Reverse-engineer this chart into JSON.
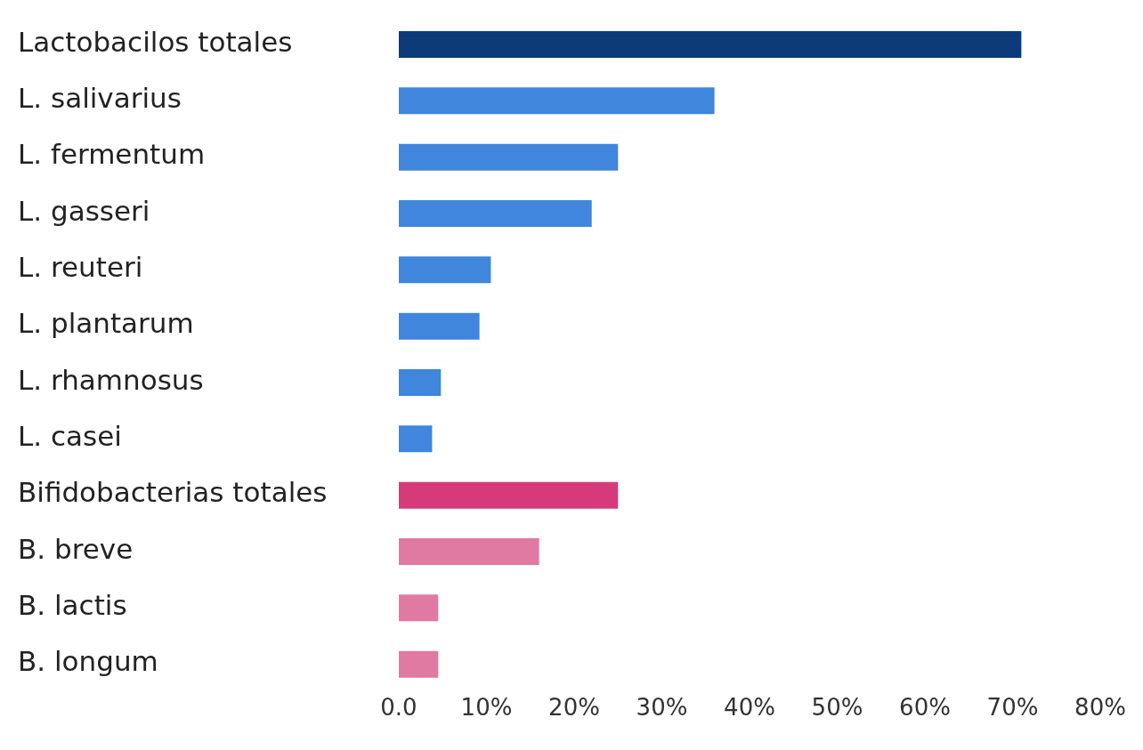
{
  "chart_data": {
    "type": "bar",
    "orientation": "horizontal",
    "categories": [
      "Lactobacilos totales",
      "L. salivarius",
      "L. fermentum",
      "L. gasseri",
      "L. reuteri",
      "L. plantarum",
      "L. rhamnosus",
      "L. casei",
      "Bifidobacterias totales",
      "B. breve",
      "B. lactis",
      "B. longum"
    ],
    "values": [
      71,
      36,
      25,
      22,
      10.5,
      9.2,
      4.8,
      3.8,
      25,
      16,
      4.5,
      4.5
    ],
    "colors": [
      "#0d3a78",
      "#3f86dc",
      "#3f86dc",
      "#3f86dc",
      "#3f86dc",
      "#3f86dc",
      "#3f86dc",
      "#3f86dc",
      "#d63a7a",
      "#e07aa2",
      "#e07aa2",
      "#e07aa2"
    ],
    "xlim": [
      0,
      80
    ],
    "xticks": [
      {
        "value": 0,
        "label": "0.0"
      },
      {
        "value": 10,
        "label": "10%"
      },
      {
        "value": 20,
        "label": "20%"
      },
      {
        "value": 30,
        "label": "30%"
      },
      {
        "value": 40,
        "label": "40%"
      },
      {
        "value": 50,
        "label": "50%"
      },
      {
        "value": 60,
        "label": "60%"
      },
      {
        "value": 70,
        "label": "70%"
      },
      {
        "value": 80,
        "label": "80%"
      }
    ],
    "grid": false,
    "legend": false
  }
}
